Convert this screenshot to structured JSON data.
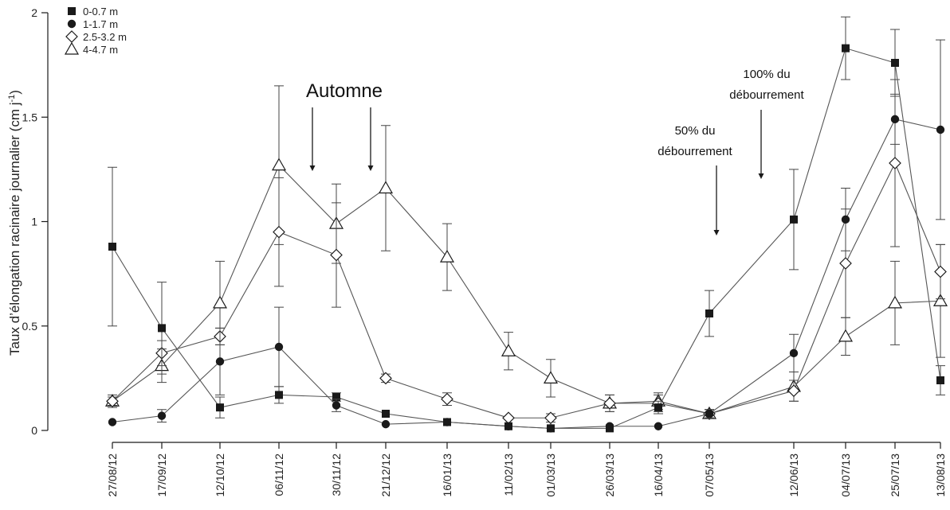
{
  "chart_data": {
    "type": "line",
    "ylabel": "Taux d’élongation racinaire journalier (cm j",
    "ylabel_sup": "-1",
    "ylabel_end": ")",
    "ylim": [
      0,
      2
    ],
    "yticks": [
      "0",
      "0.5",
      "1",
      "1.5",
      "2"
    ],
    "x": [
      "27/08/12",
      "17/09/12",
      "12/10/12",
      "06/11/12",
      "30/11/12",
      "21/12/12",
      "16/01/13",
      "11/02/13",
      "01/03/13",
      "26/03/13",
      "16/04/13",
      "07/05/13",
      "12/06/13",
      "04/07/13",
      "25/07/13",
      "13/08/13"
    ],
    "legend_position": "top-left",
    "series": [
      {
        "name": "0-0.7 m",
        "marker": "filled-square",
        "values": [
          0.88,
          0.49,
          0.11,
          0.17,
          0.16,
          0.08,
          0.04,
          0.02,
          0.01,
          0.01,
          0.11,
          0.56,
          1.01,
          1.83,
          1.76,
          0.24
        ],
        "errors": [
          0.38,
          0.22,
          0.05,
          0.04,
          0.02,
          0.01,
          0.01,
          0.01,
          0.005,
          0.005,
          0.03,
          0.11,
          0.24,
          0.15,
          0.16,
          0.07
        ]
      },
      {
        "name": "1-1.7 m",
        "marker": "filled-circle",
        "values": [
          0.04,
          0.07,
          0.33,
          0.4,
          0.12,
          0.03,
          0.04,
          0.02,
          0.01,
          0.02,
          0.02,
          0.08,
          0.37,
          1.01,
          1.49,
          1.44
        ],
        "errors": [
          0.01,
          0.03,
          0.16,
          0.19,
          0.03,
          0.01,
          0.01,
          0.01,
          0.005,
          0.005,
          0.005,
          0.02,
          0.09,
          0.15,
          0.12,
          0.43
        ]
      },
      {
        "name": "2.5-3.2 m",
        "marker": "open-diamond",
        "values": [
          0.14,
          0.37,
          0.45,
          0.95,
          0.84,
          0.25,
          0.15,
          0.06,
          0.06,
          0.13,
          0.13,
          0.08,
          0.19,
          0.8,
          1.28,
          0.76
        ],
        "errors": [
          0.02,
          0.06,
          0.04,
          0.26,
          0.25,
          0.02,
          0.03,
          0.01,
          0.02,
          0.04,
          0.04,
          0.02,
          0.05,
          0.26,
          0.4,
          0.13
        ]
      },
      {
        "name": "4-4.7 m",
        "marker": "open-triangle",
        "values": [
          0.14,
          0.31,
          0.61,
          1.27,
          0.99,
          1.16,
          0.83,
          0.38,
          0.25,
          0.13,
          0.14,
          0.08,
          0.21,
          0.45,
          0.61,
          0.62
        ],
        "errors": [
          0.03,
          0.08,
          0.2,
          0.38,
          0.19,
          0.3,
          0.16,
          0.09,
          0.09,
          0.04,
          0.04,
          0.02,
          0.07,
          0.09,
          0.2,
          0.27
        ]
      }
    ],
    "annotations": [
      {
        "text": [
          "Automne"
        ],
        "style": "large"
      },
      {
        "text": [
          "100% du",
          "débourrement"
        ],
        "style": "normal"
      },
      {
        "text": [
          "50% du",
          "débourrement"
        ],
        "style": "normal"
      }
    ]
  }
}
